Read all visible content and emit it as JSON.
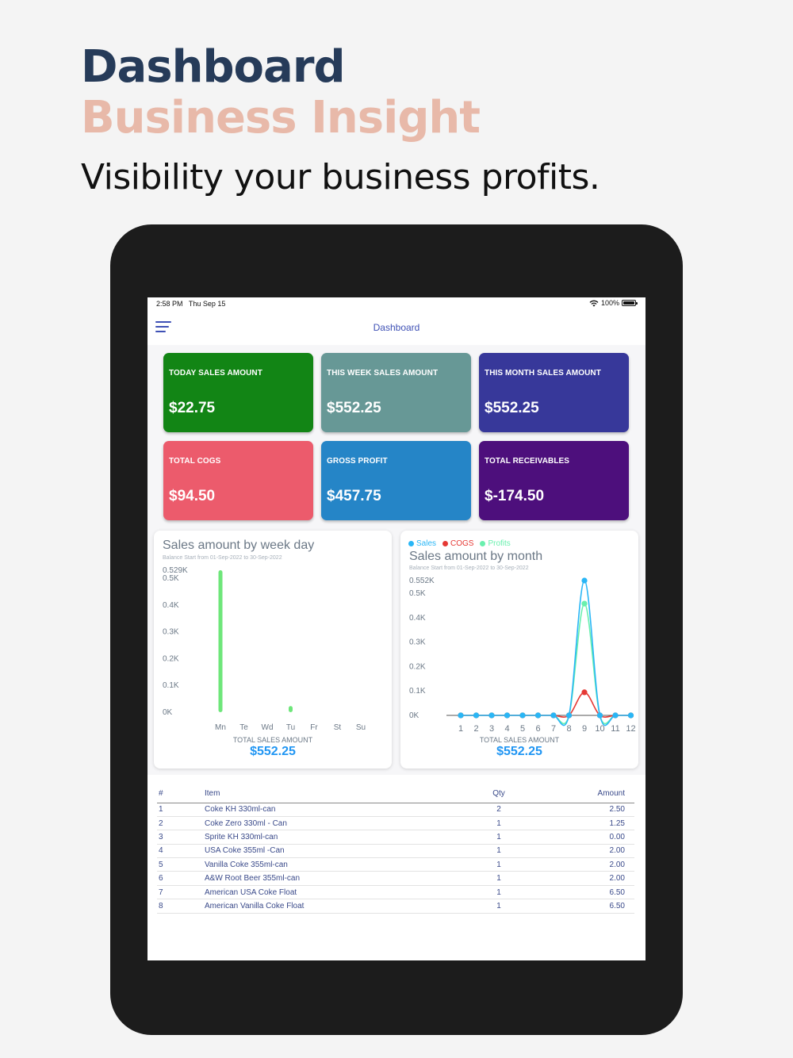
{
  "hero": {
    "title": "Dashboard",
    "subtitle": "Business Insight",
    "tagline": "Visibility your business profits."
  },
  "status_bar": {
    "time": "2:58 PM",
    "date": "Thu Sep 15",
    "battery": "100%"
  },
  "app_bar": {
    "title": "Dashboard"
  },
  "cards": [
    {
      "label": "TODAY SALES AMOUNT",
      "value": "$22.75",
      "color": "#128515"
    },
    {
      "label": "THIS WEEK SALES AMOUNT",
      "value": "$552.25",
      "color": "#679896"
    },
    {
      "label": "THIS MONTH SALES AMOUNT",
      "value": "$552.25",
      "color": "#37389a"
    },
    {
      "label": "TOTAL COGS",
      "value": "$94.50",
      "color": "#ec5b6c"
    },
    {
      "label": "GROSS PROFIT",
      "value": "$457.75",
      "color": "#2585c7"
    },
    {
      "label": "TOTAL RECEIVABLES",
      "value": "$-174.50",
      "color": "#4d0f7c"
    }
  ],
  "weekday_chart": {
    "title": "Sales amount by week day",
    "subtitle": "Balance Start from 01-Sep-2022 to 30-Sep-2022",
    "total_label": "TOTAL SALES AMOUNT",
    "total_value": "$552.25"
  },
  "month_chart": {
    "title": "Sales amount by month",
    "subtitle": "Balance Start from 01-Sep-2022 to 30-Sep-2022",
    "total_label": "TOTAL SALES AMOUNT",
    "total_value": "$552.25",
    "legend": [
      {
        "name": "Sales",
        "color": "#29b6f6"
      },
      {
        "name": "COGS",
        "color": "#e53935"
      },
      {
        "name": "Profits",
        "color": "#69f0ae"
      }
    ]
  },
  "chart_data": [
    {
      "type": "bar",
      "title": "Sales amount by week day",
      "categories": [
        "Mn",
        "Te",
        "Wd",
        "Tu",
        "Fr",
        "St",
        "Su"
      ],
      "values": [
        529.5,
        0,
        0,
        22.75,
        0,
        0,
        0
      ],
      "y_tick_labels": [
        "0K",
        "0.1K",
        "0.2K",
        "0.3K",
        "0.4K",
        "0.5K",
        "0.529K"
      ],
      "ylim": [
        0,
        529.5
      ],
      "xlabel": "TOTAL SALES AMOUNT",
      "bar_color": "#6ee67a",
      "grid": false
    },
    {
      "type": "line",
      "title": "Sales amount by month",
      "x": [
        1,
        2,
        3,
        4,
        5,
        6,
        7,
        8,
        9,
        10,
        11,
        12
      ],
      "series": [
        {
          "name": "Sales",
          "color": "#29b6f6",
          "values": [
            0,
            0,
            0,
            0,
            0,
            0,
            0,
            0,
            552.25,
            0,
            0,
            0
          ]
        },
        {
          "name": "COGS",
          "color": "#e53935",
          "values": [
            0,
            0,
            0,
            0,
            0,
            0,
            0,
            0,
            94.5,
            0,
            0,
            0
          ]
        },
        {
          "name": "Profits",
          "color": "#69f0ae",
          "values": [
            0,
            0,
            0,
            0,
            0,
            0,
            0,
            0,
            457.75,
            0,
            0,
            0
          ]
        }
      ],
      "y_tick_labels": [
        "0K",
        "0.1K",
        "0.2K",
        "0.3K",
        "0.4K",
        "0.5K",
        "0.552K"
      ],
      "ylim": [
        0,
        552.25
      ],
      "xlabel": "TOTAL SALES AMOUNT",
      "legend_position": "top-left",
      "grid": false
    }
  ],
  "table": {
    "headers": {
      "num": "#",
      "item": "Item",
      "qty": "Qty",
      "amount": "Amount"
    },
    "rows": [
      {
        "num": "1",
        "item": "Coke KH 330ml-can",
        "qty": "2",
        "amount": "2.50"
      },
      {
        "num": "2",
        "item": "Coke Zero 330ml - Can",
        "qty": "1",
        "amount": "1.25"
      },
      {
        "num": "3",
        "item": "Sprite KH 330ml-can",
        "qty": "1",
        "amount": "0.00"
      },
      {
        "num": "4",
        "item": "USA Coke 355ml -Can",
        "qty": "1",
        "amount": "2.00"
      },
      {
        "num": "5",
        "item": "Vanilla Coke 355ml-can",
        "qty": "1",
        "amount": "2.00"
      },
      {
        "num": "6",
        "item": "A&W Root Beer 355ml-can",
        "qty": "1",
        "amount": "2.00"
      },
      {
        "num": "7",
        "item": "American USA Coke Float",
        "qty": "1",
        "amount": "6.50"
      },
      {
        "num": "8",
        "item": "American Vanilla Coke Float",
        "qty": "1",
        "amount": "6.50"
      }
    ]
  }
}
